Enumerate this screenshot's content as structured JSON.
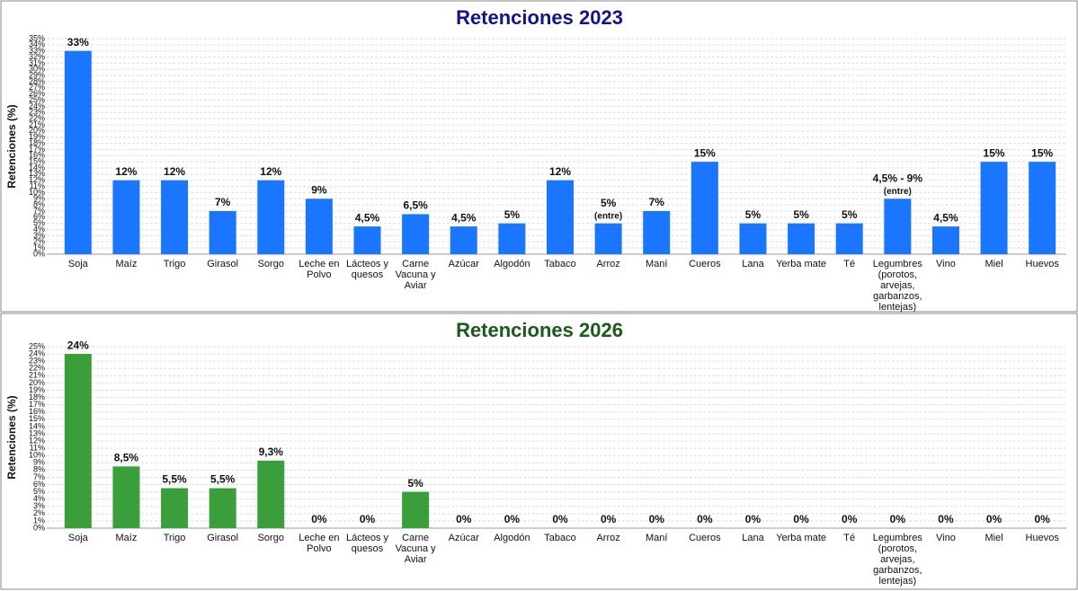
{
  "chart_data": [
    {
      "type": "bar",
      "title": "Retenciones 2023",
      "y_label": "Retenciones (%)",
      "color": "#1a75ff",
      "title_color": "#14148a",
      "grid": true,
      "categories": [
        "Soja",
        "Maíz",
        "Trigo",
        "Girasol",
        "Sorgo",
        "Leche en Polvo",
        "Lácteos y quesos",
        "Carne Vacuna y Aviar",
        "Azúcar",
        "Algodón",
        "Tabaco",
        "Arroz",
        "Maní",
        "Cueros",
        "Lana",
        "Yerba mate",
        "Té",
        "Legumbres (porotos, arvejas, garbanzos, lentejas)",
        "Vino",
        "Miel",
        "Huevos"
      ],
      "values": [
        33,
        12,
        12,
        7,
        12,
        9,
        4.5,
        6.5,
        4.5,
        5,
        12,
        5,
        7,
        15,
        5,
        5,
        5,
        9,
        4.5,
        15,
        15
      ],
      "value_labels": [
        "33%",
        "12%",
        "12%",
        "7%",
        "12%",
        "9%",
        "4,5%",
        "6,5%",
        "4,5%",
        "5%",
        "12%",
        "5%",
        "7%",
        "15%",
        "5%",
        "5%",
        "5%",
        "4,5% - 9%",
        "4,5%",
        "15%",
        "15%"
      ],
      "value_notes": [
        null,
        null,
        null,
        null,
        null,
        null,
        null,
        null,
        null,
        null,
        null,
        "(entre)",
        null,
        null,
        null,
        null,
        null,
        "(entre)",
        null,
        null,
        null
      ],
      "ylim": [
        0,
        35
      ],
      "yticks": [
        {
          "value": 0,
          "label": "0%"
        },
        {
          "value": 1,
          "label": "1%"
        },
        {
          "value": 2,
          "label": "2%"
        },
        {
          "value": 3,
          "label": "3%"
        },
        {
          "value": 4,
          "label": "4%"
        },
        {
          "value": 5,
          "label": "5%"
        },
        {
          "value": 6,
          "label": "6%"
        },
        {
          "value": 7,
          "label": "7%"
        },
        {
          "value": 8,
          "label": "8%"
        },
        {
          "value": 9,
          "label": "9%"
        },
        {
          "value": 10,
          "label": "10%"
        },
        {
          "value": 11,
          "label": "11%"
        },
        {
          "value": 12,
          "label": "12%"
        },
        {
          "value": 13,
          "label": "13%"
        },
        {
          "value": 14,
          "label": "14%"
        },
        {
          "value": 15,
          "label": "15%"
        },
        {
          "value": 16,
          "label": "16%"
        },
        {
          "value": 17,
          "label": "17%"
        },
        {
          "value": 18,
          "label": "18%"
        },
        {
          "value": 19,
          "label": "19%"
        },
        {
          "value": 20,
          "label": "20%"
        },
        {
          "value": 21,
          "label": "21%"
        },
        {
          "value": 22,
          "label": "22%"
        },
        {
          "value": 23,
          "label": "23%"
        },
        {
          "value": 24,
          "label": "24%"
        },
        {
          "value": 25,
          "label": "25%"
        },
        {
          "value": 26,
          "label": "26%"
        },
        {
          "value": 27,
          "label": "27%"
        },
        {
          "value": 28,
          "label": "28%"
        },
        {
          "value": 29,
          "label": "29%"
        },
        {
          "value": 30,
          "label": "30%"
        },
        {
          "value": 31,
          "label": "31%"
        },
        {
          "value": 32,
          "label": "32%"
        },
        {
          "value": 33,
          "label": "33%"
        },
        {
          "value": 34,
          "label": "34%"
        },
        {
          "value": 35,
          "label": "35%"
        }
      ]
    },
    {
      "type": "bar",
      "title": "Retenciones 2026",
      "y_label": "Retenciones (%)",
      "color": "#3a9e3a",
      "title_color": "#1a5a1a",
      "grid": true,
      "categories": [
        "Soja",
        "Maíz",
        "Trigo",
        "Girasol",
        "Sorgo",
        "Leche en Polvo",
        "Lácteos y quesos",
        "Carne Vacuna y Aviar",
        "Azúcar",
        "Algodón",
        "Tabaco",
        "Arroz",
        "Maní",
        "Cueros",
        "Lana",
        "Yerba mate",
        "Té",
        "Legumbres (porotos, arvejas, garbanzos, lentejas)",
        "Vino",
        "Miel",
        "Huevos"
      ],
      "values": [
        24,
        8.5,
        5.5,
        5.5,
        9.3,
        0,
        0,
        5,
        0,
        0,
        0,
        0,
        0,
        0,
        0,
        0,
        0,
        0,
        0,
        0,
        0
      ],
      "value_labels": [
        "24%",
        "8,5%",
        "5,5%",
        "5,5%",
        "9,3%",
        "0%",
        "0%",
        "5%",
        "0%",
        "0%",
        "0%",
        "0%",
        "0%",
        "0%",
        "0%",
        "0%",
        "0%",
        "0%",
        "0%",
        "0%",
        "0%"
      ],
      "ylim": [
        0,
        25
      ],
      "yticks": [
        {
          "value": 0,
          "label": "0%"
        },
        {
          "value": 1,
          "label": "1%"
        },
        {
          "value": 2,
          "label": "2%"
        },
        {
          "value": 3,
          "label": "3%"
        },
        {
          "value": 4,
          "label": "4%"
        },
        {
          "value": 5,
          "label": "5%"
        },
        {
          "value": 6,
          "label": "6%"
        },
        {
          "value": 7,
          "label": "7%"
        },
        {
          "value": 8,
          "label": "8%"
        },
        {
          "value": 9,
          "label": "9%"
        },
        {
          "value": 10,
          "label": "10%"
        },
        {
          "value": 11,
          "label": "11%"
        },
        {
          "value": 12,
          "label": "12%"
        },
        {
          "value": 13,
          "label": "13%"
        },
        {
          "value": 14,
          "label": "14%"
        },
        {
          "value": 15,
          "label": "15%"
        },
        {
          "value": 16,
          "label": "16%"
        },
        {
          "value": 17,
          "label": "17%"
        },
        {
          "value": 18,
          "label": "18%"
        },
        {
          "value": 19,
          "label": "19%"
        },
        {
          "value": 20,
          "label": "20%"
        },
        {
          "value": 21,
          "label": "21%"
        },
        {
          "value": 22,
          "label": "22%"
        },
        {
          "value": 23,
          "label": "23%"
        },
        {
          "value": 24,
          "label": "24%"
        },
        {
          "value": 25,
          "label": "25%"
        }
      ]
    }
  ]
}
